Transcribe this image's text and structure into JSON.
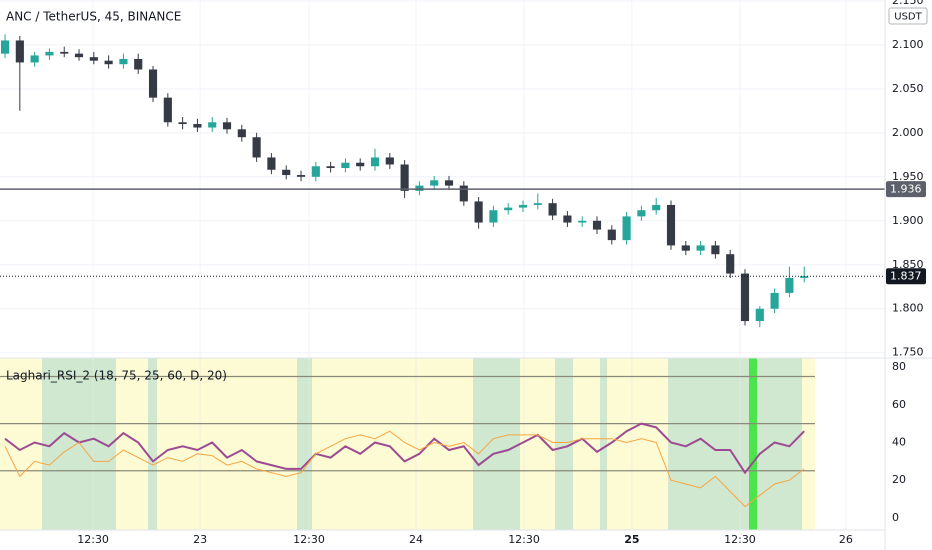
{
  "chart_data": [
    {
      "type": "candlestick",
      "title": "ANC / TetherUS, 45, BINANCE",
      "axis_unit": "USDT",
      "x": [
        0,
        1,
        2,
        3,
        4,
        5,
        6,
        7,
        8,
        9,
        10,
        11,
        12,
        13,
        14,
        15,
        16,
        17,
        18,
        19,
        20,
        21,
        22,
        23,
        24,
        25,
        26,
        27,
        28,
        29,
        30,
        31,
        32,
        33,
        34,
        35,
        36,
        37,
        38,
        39,
        40,
        41,
        42,
        43,
        44,
        45,
        46,
        47,
        48,
        49,
        50,
        51,
        52,
        53,
        54
      ],
      "open": [
        2.09,
        2.105,
        2.08,
        2.088,
        2.092,
        2.09,
        2.086,
        2.082,
        2.078,
        2.084,
        2.072,
        2.04,
        2.012,
        2.01,
        2.006,
        2.012,
        2.004,
        1.995,
        1.972,
        1.958,
        1.952,
        1.95,
        1.962,
        1.96,
        1.966,
        1.962,
        1.972,
        1.964,
        1.934,
        1.94,
        1.946,
        1.94,
        1.922,
        1.898,
        1.912,
        1.915,
        1.918,
        1.92,
        1.906,
        1.898,
        1.9,
        1.89,
        1.878,
        1.905,
        1.912,
        1.918,
        1.872,
        1.866,
        1.872,
        1.862,
        1.84,
        1.786,
        1.8,
        1.818,
        1.835
      ],
      "high": [
        2.112,
        2.11,
        2.092,
        2.096,
        2.098,
        2.095,
        2.092,
        2.088,
        2.09,
        2.09,
        2.076,
        2.045,
        2.018,
        2.016,
        2.018,
        2.017,
        2.009,
        2.0,
        1.977,
        1.963,
        1.957,
        1.967,
        1.967,
        1.971,
        1.971,
        1.982,
        1.977,
        1.969,
        1.945,
        1.951,
        1.951,
        1.945,
        1.927,
        1.917,
        1.92,
        1.923,
        1.931,
        1.925,
        1.911,
        1.905,
        1.905,
        1.895,
        1.91,
        1.917,
        1.926,
        1.923,
        1.877,
        1.877,
        1.877,
        1.867,
        1.845,
        1.803,
        1.823,
        1.848,
        1.848
      ],
      "low": [
        2.085,
        2.025,
        2.075,
        2.083,
        2.086,
        2.082,
        2.078,
        2.073,
        2.073,
        2.067,
        2.035,
        2.007,
        2.004,
        2.001,
        2.001,
        1.999,
        1.99,
        1.967,
        1.953,
        1.947,
        1.945,
        1.945,
        1.955,
        1.955,
        1.957,
        1.957,
        1.959,
        1.926,
        1.929,
        1.935,
        1.935,
        1.917,
        1.891,
        1.893,
        1.907,
        1.91,
        1.913,
        1.901,
        1.893,
        1.893,
        1.885,
        1.873,
        1.873,
        1.9,
        1.907,
        1.867,
        1.861,
        1.861,
        1.857,
        1.835,
        1.781,
        1.779,
        1.795,
        1.813,
        1.83
      ],
      "close": [
        2.105,
        2.08,
        2.088,
        2.092,
        2.09,
        2.086,
        2.082,
        2.078,
        2.084,
        2.072,
        2.04,
        2.012,
        2.01,
        2.006,
        2.012,
        2.004,
        1.995,
        1.972,
        1.958,
        1.952,
        1.95,
        1.962,
        1.96,
        1.966,
        1.962,
        1.972,
        1.964,
        1.934,
        1.94,
        1.946,
        1.94,
        1.922,
        1.898,
        1.912,
        1.915,
        1.918,
        1.92,
        1.906,
        1.898,
        1.9,
        1.89,
        1.878,
        1.905,
        1.912,
        1.918,
        1.872,
        1.866,
        1.872,
        1.862,
        1.84,
        1.786,
        1.8,
        1.818,
        1.835,
        1.837
      ],
      "up_color": "#26a69a",
      "down_color": "#363a45",
      "xlim": [
        -0.34,
        59.46
      ],
      "ylim": [
        1.744,
        2.151
      ],
      "yticks": [
        {
          "value": 1.75,
          "label": "1.750"
        },
        {
          "value": 1.8,
          "label": "1.800"
        },
        {
          "value": 1.85,
          "label": "1.850"
        },
        {
          "value": 1.9,
          "label": "1.900"
        },
        {
          "value": 1.95,
          "label": "1.950"
        },
        {
          "value": 2.0,
          "label": "2.000"
        },
        {
          "value": 2.05,
          "label": "2.050"
        },
        {
          "value": 2.1,
          "label": "2.100"
        },
        {
          "value": 2.15,
          "label": "2.150"
        }
      ],
      "price_lines": [
        {
          "value": 1.936,
          "label": "1.936",
          "color": "#5d606b",
          "style": "solid"
        },
        {
          "value": 1.837,
          "label": "1.837",
          "color": "#131722",
          "style": "dotted"
        }
      ],
      "grid": true
    },
    {
      "type": "line",
      "title": "Laghari_RSI_2 (18, 75, 25, 60, D, 20)",
      "x": [
        0,
        1,
        2,
        3,
        4,
        5,
        6,
        7,
        8,
        9,
        10,
        11,
        12,
        13,
        14,
        15,
        16,
        17,
        18,
        19,
        20,
        21,
        22,
        23,
        24,
        25,
        26,
        27,
        28,
        29,
        30,
        31,
        32,
        33,
        34,
        35,
        36,
        37,
        38,
        39,
        40,
        41,
        42,
        43,
        44,
        45,
        46,
        47,
        48,
        49,
        50,
        51,
        52,
        53,
        54
      ],
      "series": [
        {
          "color": "#9c4b92",
          "values": [
            42,
            36,
            40,
            38,
            45,
            40,
            42,
            38,
            45,
            40,
            30,
            36,
            38,
            36,
            40,
            32,
            36,
            30,
            28,
            26,
            26,
            34,
            32,
            38,
            34,
            40,
            38,
            30,
            34,
            42,
            36,
            38,
            28,
            34,
            36,
            40,
            44,
            36,
            38,
            42,
            35,
            40,
            46,
            50,
            48,
            40,
            38,
            42,
            36,
            36,
            24,
            34,
            40,
            38,
            46
          ]
        },
        {
          "color": "#f7a440",
          "values": [
            38,
            22,
            30,
            28,
            35,
            40,
            30,
            30,
            36,
            32,
            28,
            32,
            30,
            34,
            33,
            28,
            30,
            26,
            24,
            22,
            24,
            34,
            38,
            42,
            44,
            42,
            46,
            40,
            36,
            40,
            38,
            40,
            34,
            42,
            44,
            44,
            44,
            40,
            40,
            42,
            42,
            42,
            40,
            42,
            40,
            20,
            18,
            16,
            22,
            14,
            6,
            12,
            18,
            20,
            26
          ]
        }
      ],
      "levels": [
        75,
        50,
        25
      ],
      "background_zone": [
        -0.34,
        54.73
      ],
      "background_color": "#fdfbd4",
      "highlight_zones": [
        [
          2.5,
          7.5
        ],
        [
          9.66,
          10.27
        ],
        [
          19.73,
          20.74
        ],
        [
          31.62,
          34.8
        ],
        [
          37.16,
          38.38
        ],
        [
          40.2,
          40.68
        ],
        [
          44.8,
          53.85
        ]
      ],
      "highlight_color": "#cfe8cf",
      "signal_zones": [
        [
          50.27,
          50.81
        ]
      ],
      "signal_color": "#4ce44c",
      "xlim": [
        -0.34,
        59.46
      ],
      "ylim": [
        -6.4,
        84.8
      ],
      "yticks": [
        0,
        20,
        40,
        60,
        80
      ],
      "xticks": [
        {
          "value": 5.95,
          "label": "12:30"
        },
        {
          "value": 13.18,
          "label": "23"
        },
        {
          "value": 20.54,
          "label": "12:30"
        },
        {
          "value": 27.77,
          "label": "24"
        },
        {
          "value": 35.07,
          "label": "12:30"
        },
        {
          "value": 42.36,
          "label": "25"
        },
        {
          "value": 49.66,
          "label": "12:30"
        },
        {
          "value": 56.82,
          "label": "26"
        }
      ],
      "grid": true
    }
  ]
}
